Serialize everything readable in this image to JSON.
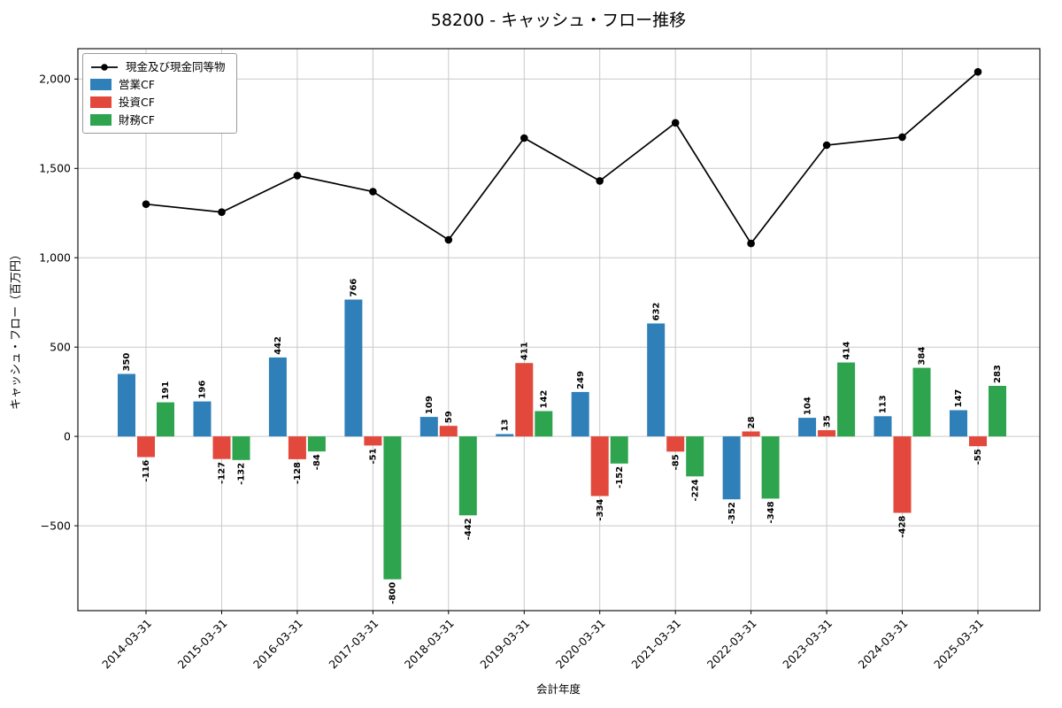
{
  "title": "58200 - キャッシュ・フロー推移",
  "axes": {
    "xlabel": "会計年度",
    "ylabel": "キャッシュ・フロー（百万円）"
  },
  "legend": {
    "items": [
      {
        "label": "現金及び現金同等物",
        "slug": "cash-and-equivalents",
        "symbol": "line",
        "color": "#000000"
      },
      {
        "label": "営業CF",
        "slug": "operating-cf",
        "symbol": "swatch",
        "color": "#2f7fb9"
      },
      {
        "label": "投資CF",
        "slug": "investing-cf",
        "symbol": "swatch",
        "color": "#e2493c"
      },
      {
        "label": "財務CF",
        "slug": "financing-cf",
        "symbol": "swatch",
        "color": "#2fa44f"
      }
    ]
  },
  "chart_data": {
    "type": "bar",
    "title": "58200 - キャッシュ・フロー推移",
    "xlabel": "会計年度",
    "ylabel": "キャッシュ・フロー（百万円）",
    "categories": [
      "2014-03-31",
      "2015-03-31",
      "2016-03-31",
      "2017-03-31",
      "2018-03-31",
      "2019-03-31",
      "2020-03-31",
      "2021-03-31",
      "2022-03-31",
      "2023-03-31",
      "2024-03-31",
      "2025-03-31"
    ],
    "series": [
      {
        "name": "営業CF",
        "type": "bar",
        "color": "#2f7fb9",
        "values": [
          350,
          196,
          442,
          766,
          109,
          13,
          249,
          632,
          -352,
          104,
          113,
          147
        ]
      },
      {
        "name": "投資CF",
        "type": "bar",
        "color": "#e2493c",
        "values": [
          -116,
          -127,
          -128,
          -51,
          59,
          411,
          -334,
          -85,
          28,
          35,
          -428,
          -55
        ]
      },
      {
        "name": "財務CF",
        "type": "bar",
        "color": "#2fa44f",
        "values": [
          191,
          -132,
          -84,
          -800,
          -442,
          142,
          -152,
          -224,
          -348,
          414,
          384,
          283
        ]
      },
      {
        "name": "現金及び現金同等物",
        "type": "line",
        "color": "#000000",
        "values": [
          1300,
          1255,
          1460,
          1370,
          1100,
          1670,
          1430,
          1755,
          1080,
          1630,
          1675,
          2040
        ]
      }
    ],
    "yticks": [
      -500,
      0,
      500,
      1000,
      1500,
      2000
    ],
    "ylim": [
      -975,
      2170
    ],
    "grid": true,
    "legend_position": "upper left"
  }
}
